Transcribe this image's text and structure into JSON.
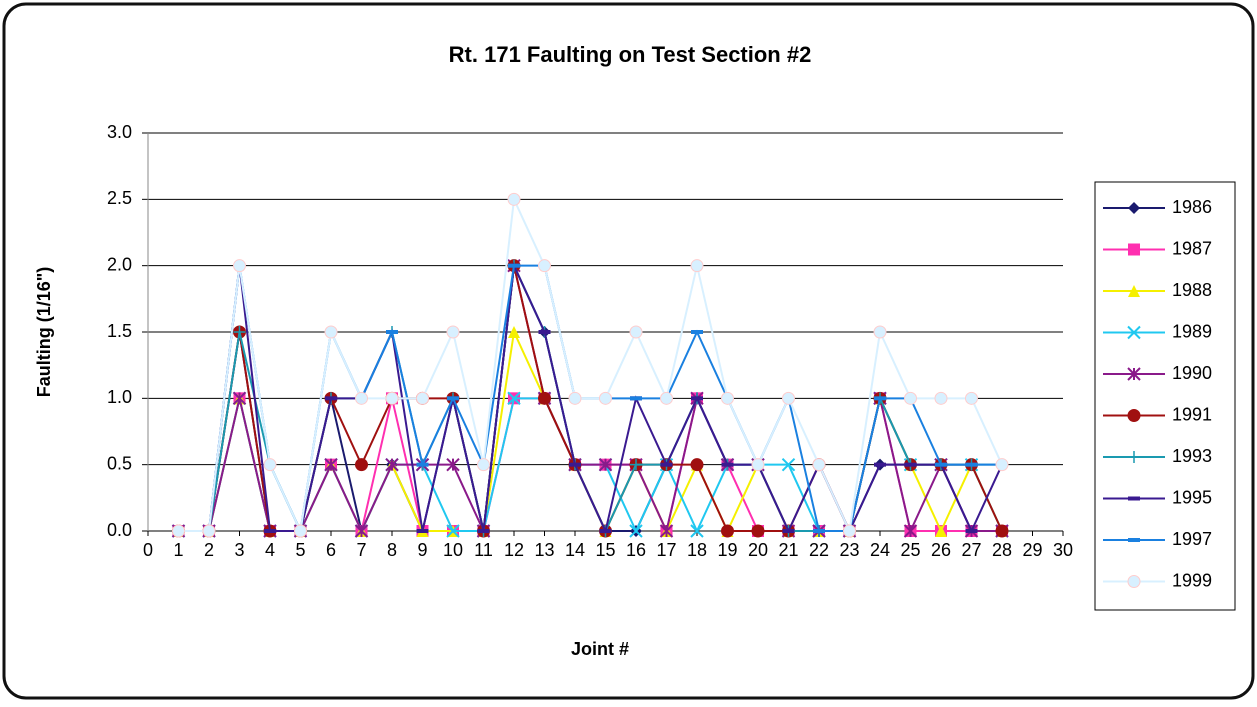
{
  "chart_data": {
    "type": "line",
    "title": "Rt. 171 Faulting on Test Section #2",
    "xlabel": "Joint #",
    "ylabel": "Faulting (1/16\")",
    "x": [
      1,
      2,
      3,
      4,
      5,
      6,
      7,
      8,
      9,
      10,
      11,
      12,
      13,
      14,
      15,
      16,
      17,
      18,
      19,
      20,
      21,
      22,
      23,
      24,
      25,
      26,
      27,
      28
    ],
    "xlim": [
      0,
      30
    ],
    "xticks": [
      0,
      1,
      2,
      3,
      4,
      5,
      6,
      7,
      8,
      9,
      10,
      11,
      12,
      13,
      14,
      15,
      16,
      17,
      18,
      19,
      20,
      21,
      22,
      23,
      24,
      25,
      26,
      27,
      28,
      29,
      30
    ],
    "ylim": [
      0,
      3
    ],
    "yticks": [
      {
        "value": 0,
        "label": "0.0"
      },
      0.5,
      {
        "value": 1,
        "label": "1.0"
      },
      1.5,
      {
        "value": 2,
        "label": "2.0"
      },
      2.5,
      {
        "value": 3,
        "label": "3.0"
      }
    ],
    "grid": true,
    "legend": "right",
    "series": [
      {
        "name": "1986",
        "color": "#1a1a6e",
        "marker": "diamond",
        "values": [
          0,
          0,
          1.5,
          0,
          0,
          1,
          0,
          0.5,
          0,
          1,
          0,
          2,
          1.5,
          0.5,
          0,
          0,
          0.5,
          1,
          0.5,
          0.5,
          0,
          0,
          0,
          0.5,
          0.5,
          0.5,
          0,
          0
        ]
      },
      {
        "name": "1987",
        "color": "#ff2fb0",
        "marker": "square",
        "values": [
          0,
          0,
          1,
          0,
          0,
          0.5,
          0,
          1,
          0,
          0,
          0,
          1,
          1,
          0.5,
          0.5,
          0.5,
          0,
          1,
          0.5,
          0,
          0,
          0,
          0,
          1,
          0,
          0,
          0,
          0
        ]
      },
      {
        "name": "1988",
        "color": "#f5f000",
        "marker": "triangle",
        "values": [
          0,
          0,
          1,
          0,
          0,
          0.5,
          0,
          0.5,
          0,
          0,
          0,
          1.5,
          1,
          0.5,
          0,
          0.5,
          0,
          0.5,
          0,
          0.5,
          0,
          0,
          0,
          1,
          0.5,
          0,
          0.5,
          0
        ]
      },
      {
        "name": "1989",
        "color": "#20c8f0",
        "marker": "x",
        "values": [
          0,
          0,
          1,
          0,
          0,
          0.5,
          0,
          0.5,
          0.5,
          0,
          0,
          1,
          1,
          0.5,
          0.5,
          0,
          0.5,
          0,
          0.5,
          0.5,
          0.5,
          0,
          0,
          1,
          0.5,
          0.5,
          0.5,
          0
        ]
      },
      {
        "name": "1990",
        "color": "#8a1a8a",
        "marker": "star",
        "values": [
          0,
          0,
          1,
          0,
          0,
          0.5,
          0,
          0.5,
          0.5,
          0.5,
          0,
          2,
          1,
          0.5,
          0.5,
          0.5,
          0,
          1,
          0.5,
          0.5,
          0,
          0,
          0,
          1,
          0,
          0.5,
          0,
          0
        ]
      },
      {
        "name": "1991",
        "color": "#a01010",
        "marker": "circle",
        "values": [
          0,
          0,
          1.5,
          0,
          0,
          1,
          0.5,
          1,
          1,
          1,
          0,
          2,
          1,
          0.5,
          0,
          0.5,
          0.5,
          0.5,
          0,
          0,
          0,
          0.5,
          0,
          1,
          0.5,
          0.5,
          0.5,
          0
        ]
      },
      {
        "name": "1993",
        "color": "#1a9ab0",
        "marker": "plus",
        "values": [
          0,
          0,
          1.5,
          0.5,
          0,
          1,
          1,
          1.5,
          0.5,
          1,
          0,
          2,
          1.5,
          0.5,
          0,
          0.5,
          0.5,
          1,
          0.5,
          0.5,
          0,
          0,
          0,
          1,
          0.5,
          0.5,
          0.5,
          0.5
        ]
      },
      {
        "name": "1995",
        "color": "#3a1a90",
        "marker": "bar",
        "values": [
          0,
          0,
          2,
          0,
          0,
          1,
          1,
          1.5,
          0,
          1,
          0,
          2,
          1.5,
          0.5,
          0,
          1,
          0.5,
          1,
          0.5,
          0.5,
          0,
          0.5,
          0,
          0.5,
          0.5,
          0.5,
          0,
          0.5
        ]
      },
      {
        "name": "1997",
        "color": "#1a80e0",
        "marker": "bar",
        "values": [
          0,
          0,
          2,
          0.5,
          0,
          1.5,
          1,
          1.5,
          0.5,
          1,
          0.5,
          2,
          2,
          1,
          1,
          1,
          1,
          1.5,
          1,
          0.5,
          1,
          0,
          0,
          1,
          1,
          0.5,
          0.5,
          0.5
        ]
      },
      {
        "name": "1999",
        "color": "#d8f0ff",
        "marker": "circle",
        "values": [
          0,
          0,
          2,
          0.5,
          0,
          1.5,
          1,
          1,
          1,
          1.5,
          0.5,
          2.5,
          2,
          1,
          1,
          1.5,
          1,
          2,
          1,
          0.5,
          1,
          0.5,
          0,
          1.5,
          1,
          1,
          1,
          0.5
        ]
      }
    ]
  }
}
